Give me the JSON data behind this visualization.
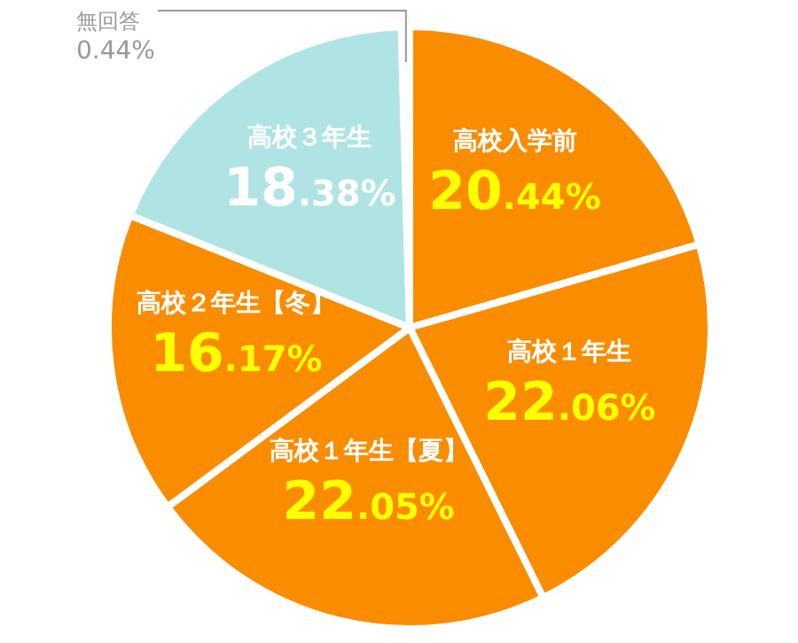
{
  "chart_data": {
    "type": "pie",
    "categories": [
      "高校入学前",
      "高校１年生",
      "高校１年生【夏】",
      "高校２年生【冬】",
      "高校３年生",
      "無回答"
    ],
    "values": [
      20.44,
      22.06,
      22.05,
      16.17,
      18.38,
      0.44
    ],
    "colors": [
      "#fa8c00",
      "#fa8c00",
      "#fa8c00",
      "#fa8c00",
      "#b0e4e4",
      "#dcdcf0"
    ],
    "value_labels": [
      "20.44%",
      "22.06%",
      "22.05%",
      "16.17%",
      "18.38%",
      "0.44%"
    ],
    "legend": false
  }
}
